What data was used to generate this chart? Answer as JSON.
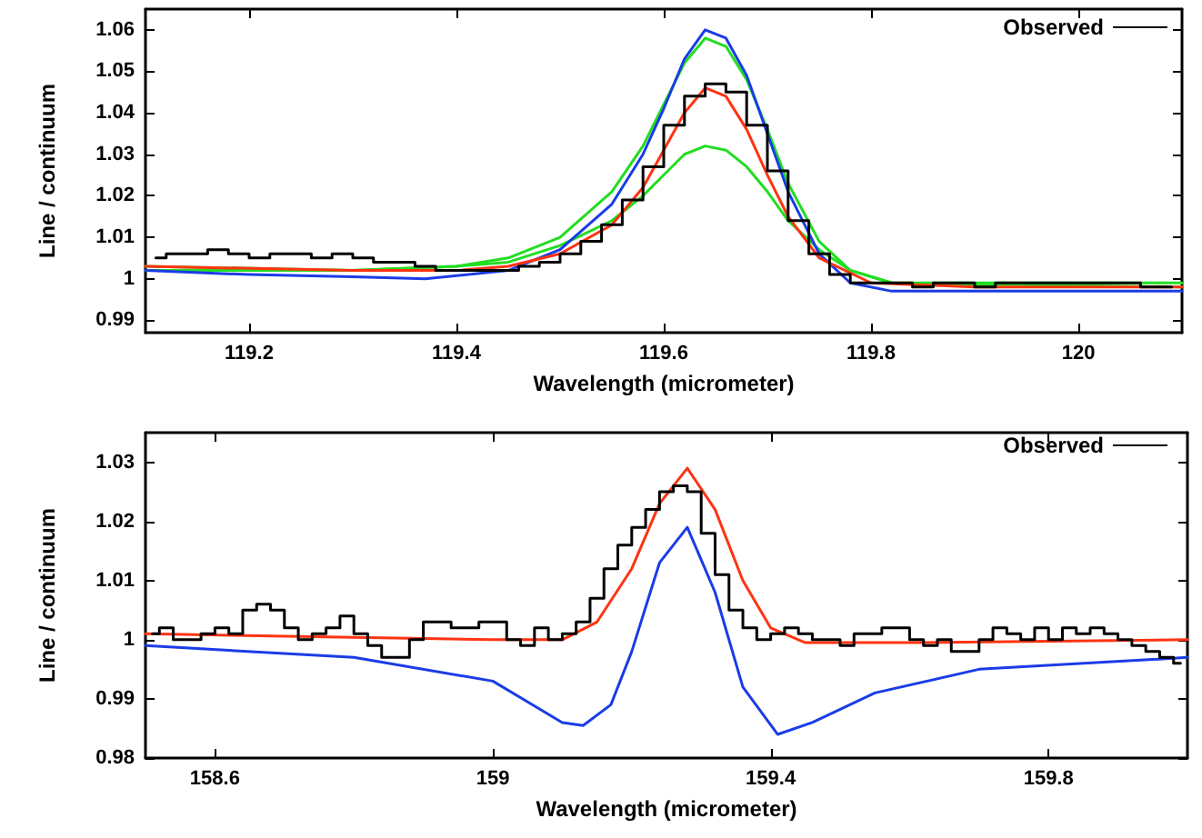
{
  "chart_data": [
    {
      "type": "line",
      "xlabel": "Wavelength (micrometer)",
      "ylabel": "Line / continuum",
      "xlim": [
        119.1,
        120.1
      ],
      "ylim": [
        0.987,
        1.065
      ],
      "xticks": [
        119.2,
        119.4,
        119.6,
        119.8,
        120
      ],
      "yticks": [
        0.99,
        1,
        1.01,
        1.02,
        1.03,
        1.04,
        1.05,
        1.06
      ],
      "grid": false,
      "legend": "top right",
      "marker": "none",
      "line_style": "solid",
      "series": [
        {
          "color": "#22dd22",
          "x": [
            119.1,
            119.3,
            119.4,
            119.45,
            119.5,
            119.55,
            119.58,
            119.6,
            119.62,
            119.64,
            119.66,
            119.68,
            119.7,
            119.72,
            119.75,
            119.78,
            119.82,
            120.1
          ],
          "values": [
            1.002,
            1.002,
            1.003,
            1.004,
            1.008,
            1.014,
            1.02,
            1.025,
            1.03,
            1.032,
            1.031,
            1.027,
            1.021,
            1.014,
            1.007,
            1.002,
            0.999,
            0.999
          ]
        },
        {
          "color": "#22dd22",
          "x": [
            119.1,
            119.3,
            119.4,
            119.45,
            119.5,
            119.55,
            119.58,
            119.6,
            119.62,
            119.64,
            119.66,
            119.68,
            119.7,
            119.72,
            119.75,
            119.78,
            119.82,
            120.1
          ],
          "values": [
            1.003,
            1.002,
            1.003,
            1.005,
            1.01,
            1.021,
            1.032,
            1.042,
            1.052,
            1.058,
            1.056,
            1.048,
            1.036,
            1.023,
            1.009,
            1.002,
            0.999,
            0.998
          ]
        },
        {
          "color": "#1a3ce6",
          "x": [
            119.1,
            119.2,
            119.3,
            119.37,
            119.45,
            119.5,
            119.55,
            119.58,
            119.6,
            119.62,
            119.64,
            119.66,
            119.68,
            119.7,
            119.72,
            119.75,
            119.78,
            119.82,
            120.1
          ],
          "values": [
            1.002,
            1.001,
            1.0005,
            1.0,
            1.002,
            1.007,
            1.018,
            1.03,
            1.041,
            1.053,
            1.06,
            1.058,
            1.049,
            1.035,
            1.021,
            1.006,
            0.999,
            0.997,
            0.997
          ]
        },
        {
          "color": "#ff3311",
          "x": [
            119.1,
            119.3,
            119.4,
            119.45,
            119.5,
            119.55,
            119.58,
            119.6,
            119.62,
            119.64,
            119.66,
            119.68,
            119.7,
            119.72,
            119.75,
            119.8,
            119.9,
            120.1
          ],
          "values": [
            1.003,
            1.002,
            1.002,
            1.003,
            1.006,
            1.013,
            1.022,
            1.031,
            1.04,
            1.046,
            1.044,
            1.036,
            1.025,
            1.015,
            1.005,
            0.999,
            0.998,
            0.998
          ]
        },
        {
          "type": "step",
          "name": "Observed",
          "color": "#000000",
          "x": [
            119.11,
            119.13,
            119.15,
            119.17,
            119.19,
            119.21,
            119.23,
            119.25,
            119.27,
            119.29,
            119.31,
            119.33,
            119.35,
            119.37,
            119.39,
            119.41,
            119.43,
            119.45,
            119.47,
            119.49,
            119.51,
            119.53,
            119.55,
            119.57,
            119.59,
            119.61,
            119.63,
            119.65,
            119.67,
            119.69,
            119.71,
            119.73,
            119.75,
            119.77,
            119.79,
            119.81,
            119.83,
            119.85,
            119.87,
            119.89,
            119.91,
            119.93,
            119.95,
            119.97,
            119.99,
            120.01,
            120.03,
            120.05,
            120.07,
            120.09
          ],
          "values": [
            1.005,
            1.006,
            1.006,
            1.007,
            1.006,
            1.005,
            1.006,
            1.006,
            1.005,
            1.006,
            1.005,
            1.004,
            1.004,
            1.003,
            1.002,
            1.002,
            1.002,
            1.002,
            1.003,
            1.004,
            1.006,
            1.009,
            1.013,
            1.019,
            1.027,
            1.037,
            1.044,
            1.047,
            1.045,
            1.037,
            1.026,
            1.014,
            1.006,
            1.001,
            0.999,
            0.999,
            0.999,
            0.998,
            0.999,
            0.999,
            0.998,
            0.999,
            0.999,
            0.999,
            0.999,
            0.999,
            0.999,
            0.999,
            0.998,
            0.998
          ]
        }
      ]
    },
    {
      "type": "line",
      "xlabel": "Wavelength (micrometer)",
      "ylabel": "Line / continuum",
      "xlim": [
        158.5,
        160
      ],
      "ylim": [
        0.98,
        1.035
      ],
      "xticks": [
        158.6,
        159,
        159.4,
        159.8
      ],
      "yticks": [
        0.98,
        0.99,
        1,
        1.01,
        1.02,
        1.03
      ],
      "grid": false,
      "legend": "top right",
      "marker": "none",
      "line_style": "solid",
      "series": [
        {
          "color": "#1a3ce6",
          "x": [
            158.5,
            158.8,
            159.0,
            159.1,
            159.13,
            159.17,
            159.2,
            159.24,
            159.28,
            159.32,
            159.36,
            159.41,
            159.46,
            159.55,
            159.7,
            160
          ],
          "values": [
            0.999,
            0.997,
            0.993,
            0.986,
            0.9855,
            0.989,
            0.998,
            1.013,
            1.019,
            1.008,
            0.992,
            0.984,
            0.986,
            0.991,
            0.995,
            0.997
          ]
        },
        {
          "color": "#ff3311",
          "x": [
            158.5,
            159.0,
            159.1,
            159.15,
            159.2,
            159.24,
            159.28,
            159.32,
            159.36,
            159.4,
            159.45,
            159.6,
            160
          ],
          "values": [
            1.001,
            1.0,
            1.0,
            1.003,
            1.012,
            1.023,
            1.029,
            1.022,
            1.01,
            1.002,
            0.9995,
            0.9995,
            1.0
          ]
        },
        {
          "type": "step",
          "name": "Observed",
          "color": "#000000",
          "x": [
            158.51,
            158.53,
            158.55,
            158.57,
            158.59,
            158.61,
            158.63,
            158.65,
            158.67,
            158.69,
            158.71,
            158.73,
            158.75,
            158.77,
            158.79,
            158.81,
            158.83,
            158.85,
            158.87,
            158.89,
            158.91,
            158.93,
            158.95,
            158.97,
            158.99,
            159.01,
            159.03,
            159.05,
            159.07,
            159.09,
            159.11,
            159.13,
            159.15,
            159.17,
            159.19,
            159.21,
            159.23,
            159.25,
            159.27,
            159.29,
            159.31,
            159.33,
            159.35,
            159.37,
            159.39,
            159.41,
            159.43,
            159.45,
            159.47,
            159.49,
            159.51,
            159.53,
            159.55,
            159.57,
            159.59,
            159.61,
            159.63,
            159.65,
            159.67,
            159.69,
            159.71,
            159.73,
            159.75,
            159.77,
            159.79,
            159.81,
            159.83,
            159.85,
            159.87,
            159.89,
            159.91,
            159.93,
            159.95,
            159.97,
            159.99
          ],
          "values": [
            1.001,
            1.002,
            1.0,
            1.0,
            1.001,
            1.002,
            1.001,
            1.005,
            1.006,
            1.005,
            1.002,
            1.0,
            1.001,
            1.002,
            1.004,
            1.001,
            0.999,
            0.997,
            0.997,
            1.0,
            1.003,
            1.003,
            1.002,
            1.002,
            1.003,
            1.003,
            1.0,
            0.999,
            1.002,
            1.0,
            1.001,
            1.003,
            1.007,
            1.012,
            1.016,
            1.019,
            1.022,
            1.025,
            1.026,
            1.025,
            1.018,
            1.011,
            1.005,
            1.002,
            1.0,
            1.001,
            1.002,
            1.001,
            1.0,
            1.0,
            0.999,
            1.001,
            1.001,
            1.002,
            1.002,
            1.0,
            0.999,
            1.0,
            0.998,
            0.998,
            1.0,
            1.002,
            1.001,
            1.0,
            1.002,
            1.0,
            1.002,
            1.001,
            1.002,
            1.001,
            1.0,
            0.999,
            0.998,
            0.997,
            0.996
          ]
        }
      ]
    }
  ]
}
